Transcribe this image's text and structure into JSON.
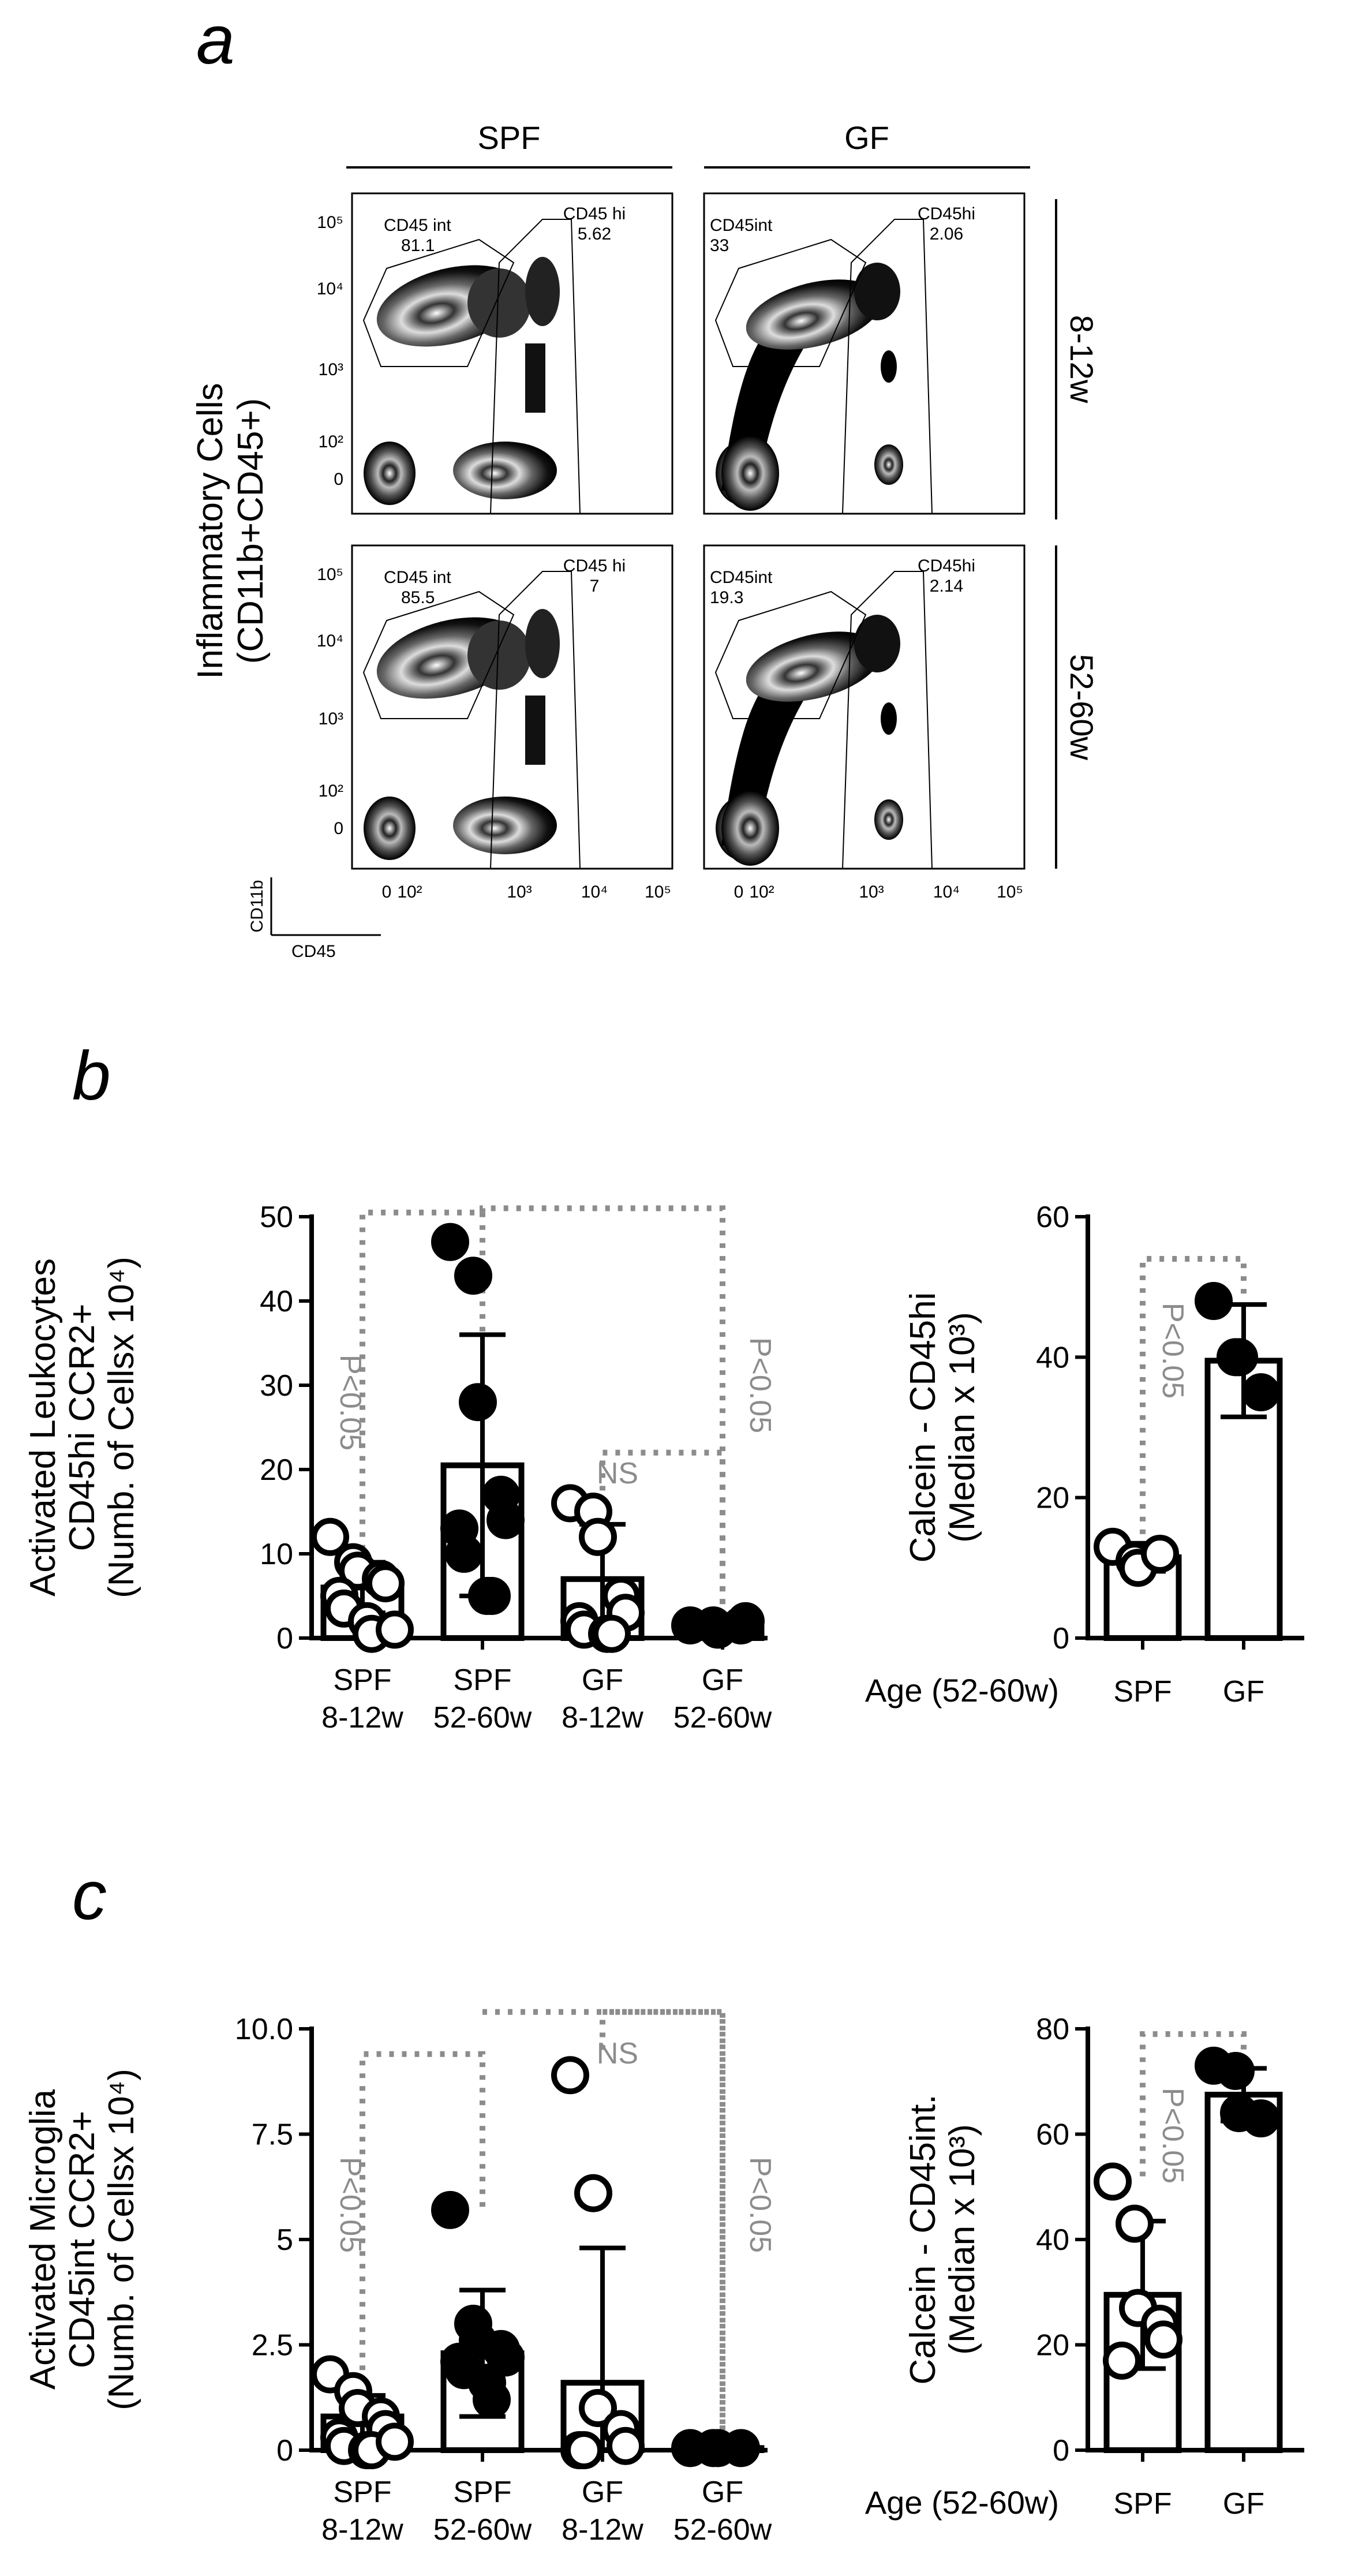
{
  "panel_a": {
    "letter": "a",
    "col_headers": [
      "SPF",
      "GF"
    ],
    "row_headers": [
      "8-12w",
      "52-60w"
    ],
    "ylabel_line1": "Inflammatory Cells",
    "ylabel_line2": "(CD11b+CD45+)",
    "y_ticks": [
      "10⁵",
      "10⁴",
      "10³",
      "10²",
      "0"
    ],
    "x_ticks": [
      "0",
      "10²",
      "10³",
      "10⁴",
      "10⁵"
    ],
    "corner_y": "CD11b",
    "corner_x": "CD45",
    "gates": [
      {
        "int_label": "CD45 int",
        "int_value": "81.1",
        "hi_label": "CD45 hi",
        "hi_value": "5.62"
      },
      {
        "int_label": "CD45int",
        "int_value": "33",
        "hi_label": "CD45hi",
        "hi_value": "2.06"
      },
      {
        "int_label": "CD45 int",
        "int_value": "85.5",
        "hi_label": "CD45 hi",
        "hi_value": "7"
      },
      {
        "int_label": "CD45int",
        "int_value": "19.3",
        "hi_label": "CD45hi",
        "hi_value": "2.14"
      }
    ]
  },
  "panel_b": {
    "letter": "b"
  },
  "panel_c": {
    "letter": "c"
  },
  "chart_data": [
    {
      "type": "bar",
      "panel": "b-left",
      "ylabel_lines": [
        "Activated Leukocytes",
        "CD45hi CCR2+",
        "(Numb. of Cellsx 10⁴)"
      ],
      "ylim": [
        0,
        50
      ],
      "yticks": [
        0,
        10,
        20,
        30,
        40,
        50
      ],
      "ytick_labels": [
        "0",
        "10",
        "20",
        "30",
        "40",
        "50"
      ],
      "categories": [
        "SPF\n8-12w",
        "SPF\n52-60w",
        "GF\n8-12w",
        "GF\n52-60w"
      ],
      "cat_line1": [
        "SPF",
        "SPF",
        "GF",
        "GF"
      ],
      "cat_line2": [
        "8-12w",
        "52-60w",
        "8-12w",
        "52-60w"
      ],
      "means": [
        6,
        20.5,
        7,
        1.5
      ],
      "sd": [
        3,
        15.5,
        6.5,
        0.5
      ],
      "filled": [
        false,
        true,
        false,
        true
      ],
      "points": [
        [
          12,
          9,
          8,
          7,
          6.5,
          5,
          3.5,
          2,
          0.5,
          1
        ],
        [
          47,
          43,
          28,
          17,
          14,
          13,
          10,
          5,
          5
        ],
        [
          16,
          15,
          12,
          5,
          3,
          2,
          1,
          0.5,
          0.5
        ],
        [
          1.5,
          1.5,
          1,
          1.5,
          2
        ]
      ],
      "annotations": [
        {
          "text": "P<0.05",
          "between": [
            0,
            1
          ]
        },
        {
          "text": "NS",
          "between": [
            2,
            3
          ]
        },
        {
          "text": "P<0.05",
          "between": [
            1,
            3
          ]
        }
      ]
    },
    {
      "type": "bar",
      "panel": "b-right",
      "ylabel_lines": [
        "Calcein - CD45hi",
        "(Median x 10³)"
      ],
      "ylim": [
        0,
        60
      ],
      "yticks": [
        0,
        20,
        40,
        60
      ],
      "ytick_labels": [
        "0",
        "20",
        "40",
        "60"
      ],
      "age_label": "Age (52-60w)",
      "categories": [
        "SPF",
        "GF"
      ],
      "means": [
        11.5,
        39.5
      ],
      "sd": [
        2,
        8
      ],
      "filled": [
        false,
        true
      ],
      "points": [
        [
          13,
          11,
          10,
          12
        ],
        [
          48,
          40,
          40,
          35
        ]
      ],
      "annotations": [
        {
          "text": "P<0.05",
          "between": [
            0,
            1
          ]
        }
      ]
    },
    {
      "type": "bar",
      "panel": "c-left",
      "ylabel_lines": [
        "Activated Microglia",
        "CD45int CCR2+",
        "(Numb. of Cellsx 10⁴)"
      ],
      "ylim": [
        0,
        10
      ],
      "yticks": [
        0,
        2.5,
        5,
        7.5,
        10
      ],
      "ytick_labels": [
        "0",
        "2.5",
        "5",
        "7.5",
        "10.0"
      ],
      "categories": [
        "SPF\n8-12w",
        "SPF\n52-60w",
        "GF\n8-12w",
        "GF\n52-60w"
      ],
      "cat_line1": [
        "SPF",
        "SPF",
        "GF",
        "GF"
      ],
      "cat_line2": [
        "8-12w",
        "52-60w",
        "8-12w",
        "52-60w"
      ],
      "means": [
        0.8,
        2.3,
        1.6,
        0.05
      ],
      "sd": [
        0.5,
        1.5,
        3.2,
        0.05
      ],
      "filled": [
        false,
        true,
        false,
        true
      ],
      "points": [
        [
          1.8,
          1.4,
          1.0,
          0.8,
          0.5,
          0.3,
          0.1,
          0.0,
          0.0,
          0.2
        ],
        [
          5.7,
          3.0,
          2.6,
          2.4,
          2.2,
          2.1,
          1.9,
          1.6,
          1.2
        ],
        [
          8.9,
          6.1,
          1.0,
          0.5,
          0.1,
          0.0,
          0.0
        ],
        [
          0.05,
          0.05,
          0.05,
          0.05
        ]
      ],
      "annotations": [
        {
          "text": "P<0.05",
          "between": [
            0,
            1
          ]
        },
        {
          "text": "NS",
          "between": [
            2,
            3
          ]
        },
        {
          "text": "P<0.05",
          "between": [
            1,
            3
          ]
        }
      ]
    },
    {
      "type": "bar",
      "panel": "c-right",
      "ylabel_lines": [
        "Calcein - CD45int.",
        "(Median x 10³)"
      ],
      "ylim": [
        0,
        80
      ],
      "yticks": [
        0,
        20,
        40,
        60,
        80
      ],
      "ytick_labels": [
        "0",
        "20",
        "40",
        "60",
        "80"
      ],
      "age_label": "Age (52-60w)",
      "categories": [
        "SPF",
        "GF"
      ],
      "means": [
        29.5,
        67.5
      ],
      "sd": [
        14,
        5
      ],
      "filled": [
        false,
        true
      ],
      "points": [
        [
          51,
          43,
          27,
          24,
          21,
          17
        ],
        [
          73,
          72,
          64,
          63
        ]
      ],
      "annotations": [
        {
          "text": "P<0.05",
          "between": [
            0,
            1
          ]
        }
      ]
    }
  ]
}
